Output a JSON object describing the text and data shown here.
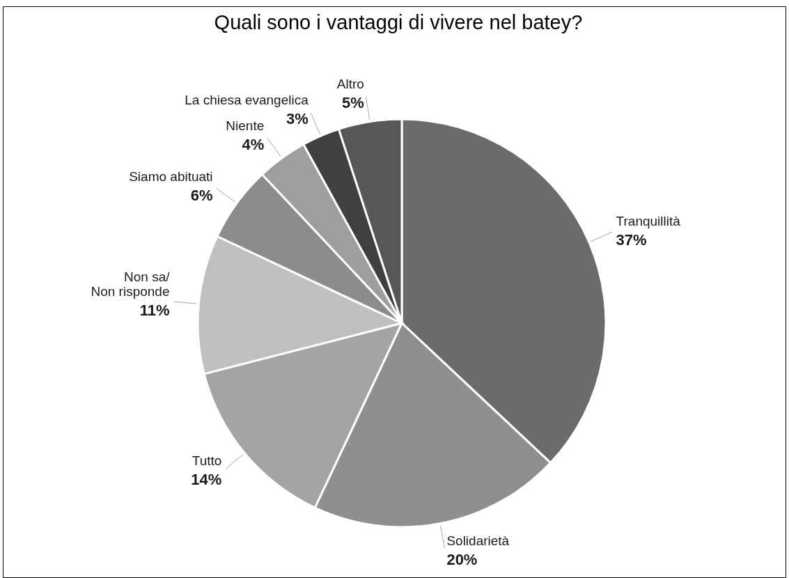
{
  "chart_data": {
    "type": "pie",
    "title": "Quali sono i vantaggi di vivere nel batey?",
    "categories": [
      "Tranquillità",
      "Solidarietà",
      "Tutto",
      "Non sa/\nNon risponde",
      "Siamo abituati",
      "Niente",
      "La chiesa evangelica",
      "Altro"
    ],
    "values": [
      37,
      20,
      14,
      11,
      6,
      4,
      3,
      5
    ],
    "colors": [
      "#6b6b6b",
      "#8f8f8f",
      "#a4a4a4",
      "#c0c0c0",
      "#8c8c8c",
      "#9e9e9e",
      "#404040",
      "#575757"
    ],
    "value_labels": [
      "37%",
      "20%",
      "14%",
      "11%",
      "6%",
      "4%",
      "3%",
      "5%"
    ]
  }
}
